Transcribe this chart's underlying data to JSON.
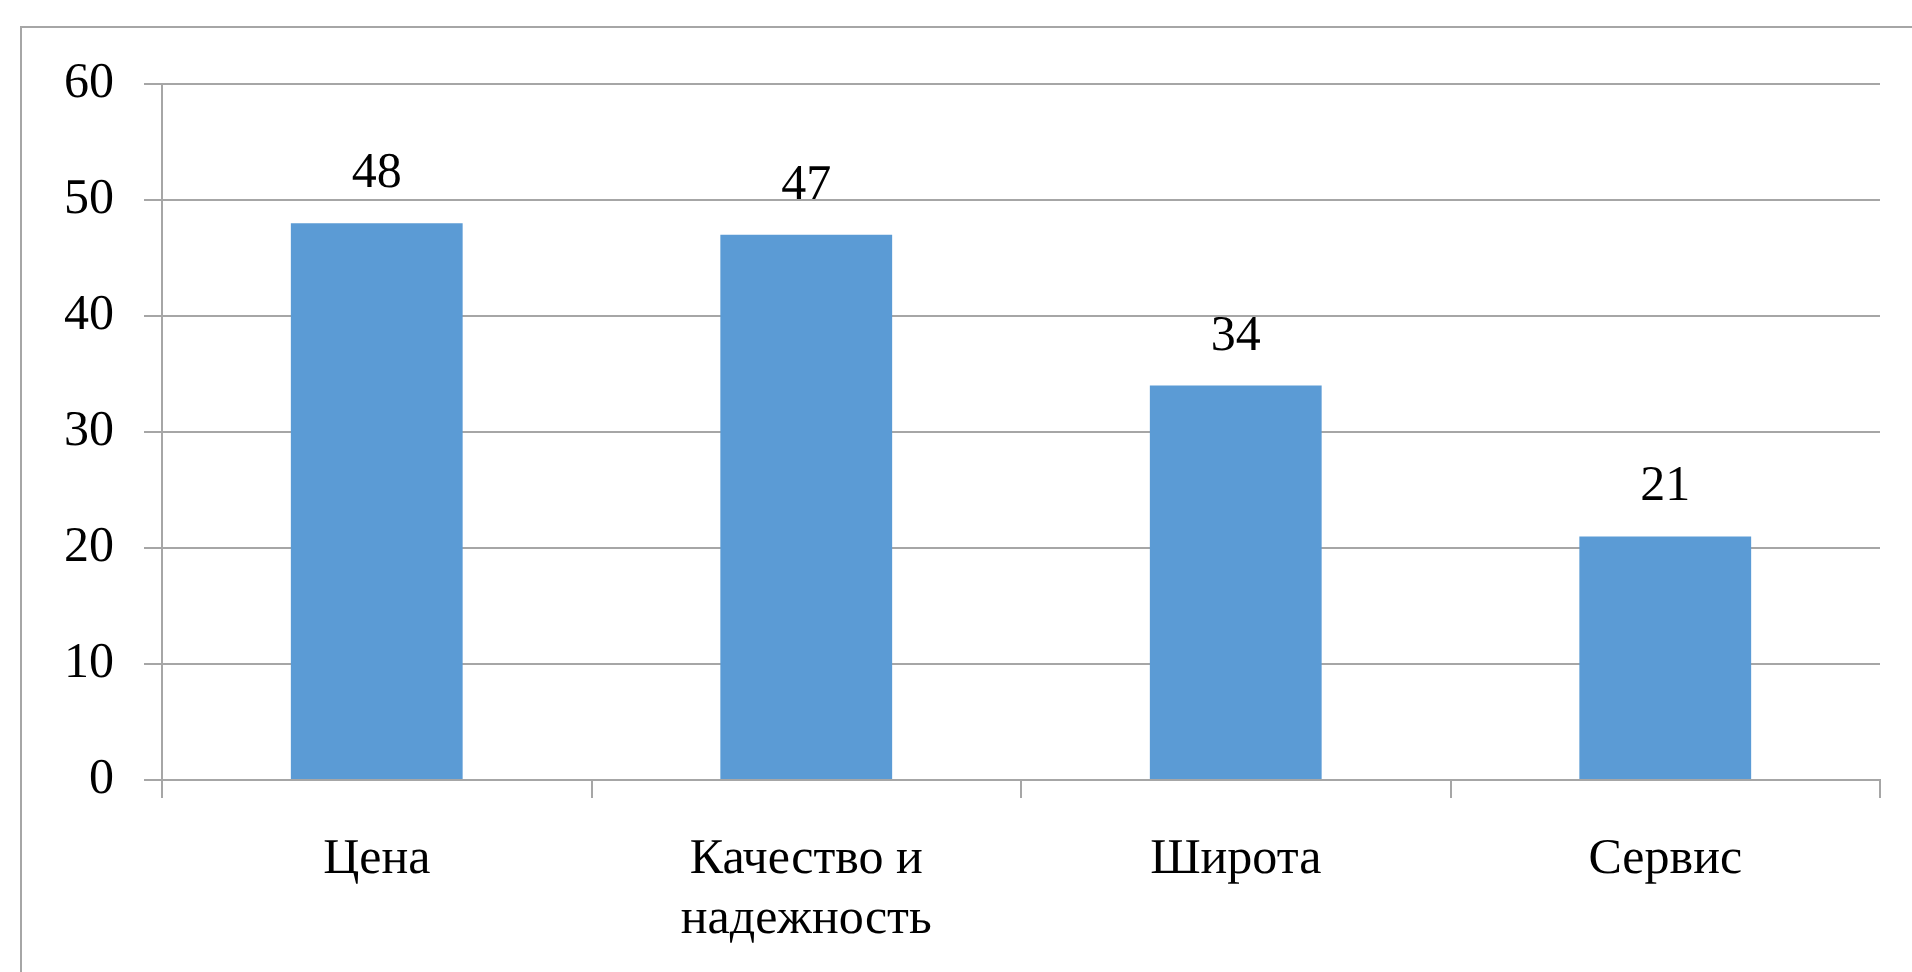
{
  "chart_data": {
    "type": "bar",
    "categories": [
      "Цена",
      "Качество и надежность",
      "Широта",
      "Сервис"
    ],
    "values": [
      48,
      47,
      34,
      21
    ],
    "color": "#5b9bd5",
    "ylim": [
      0,
      60
    ],
    "yticks": [
      0,
      10,
      20,
      30,
      40,
      50,
      60
    ],
    "grid": "y",
    "data_labels": true
  }
}
